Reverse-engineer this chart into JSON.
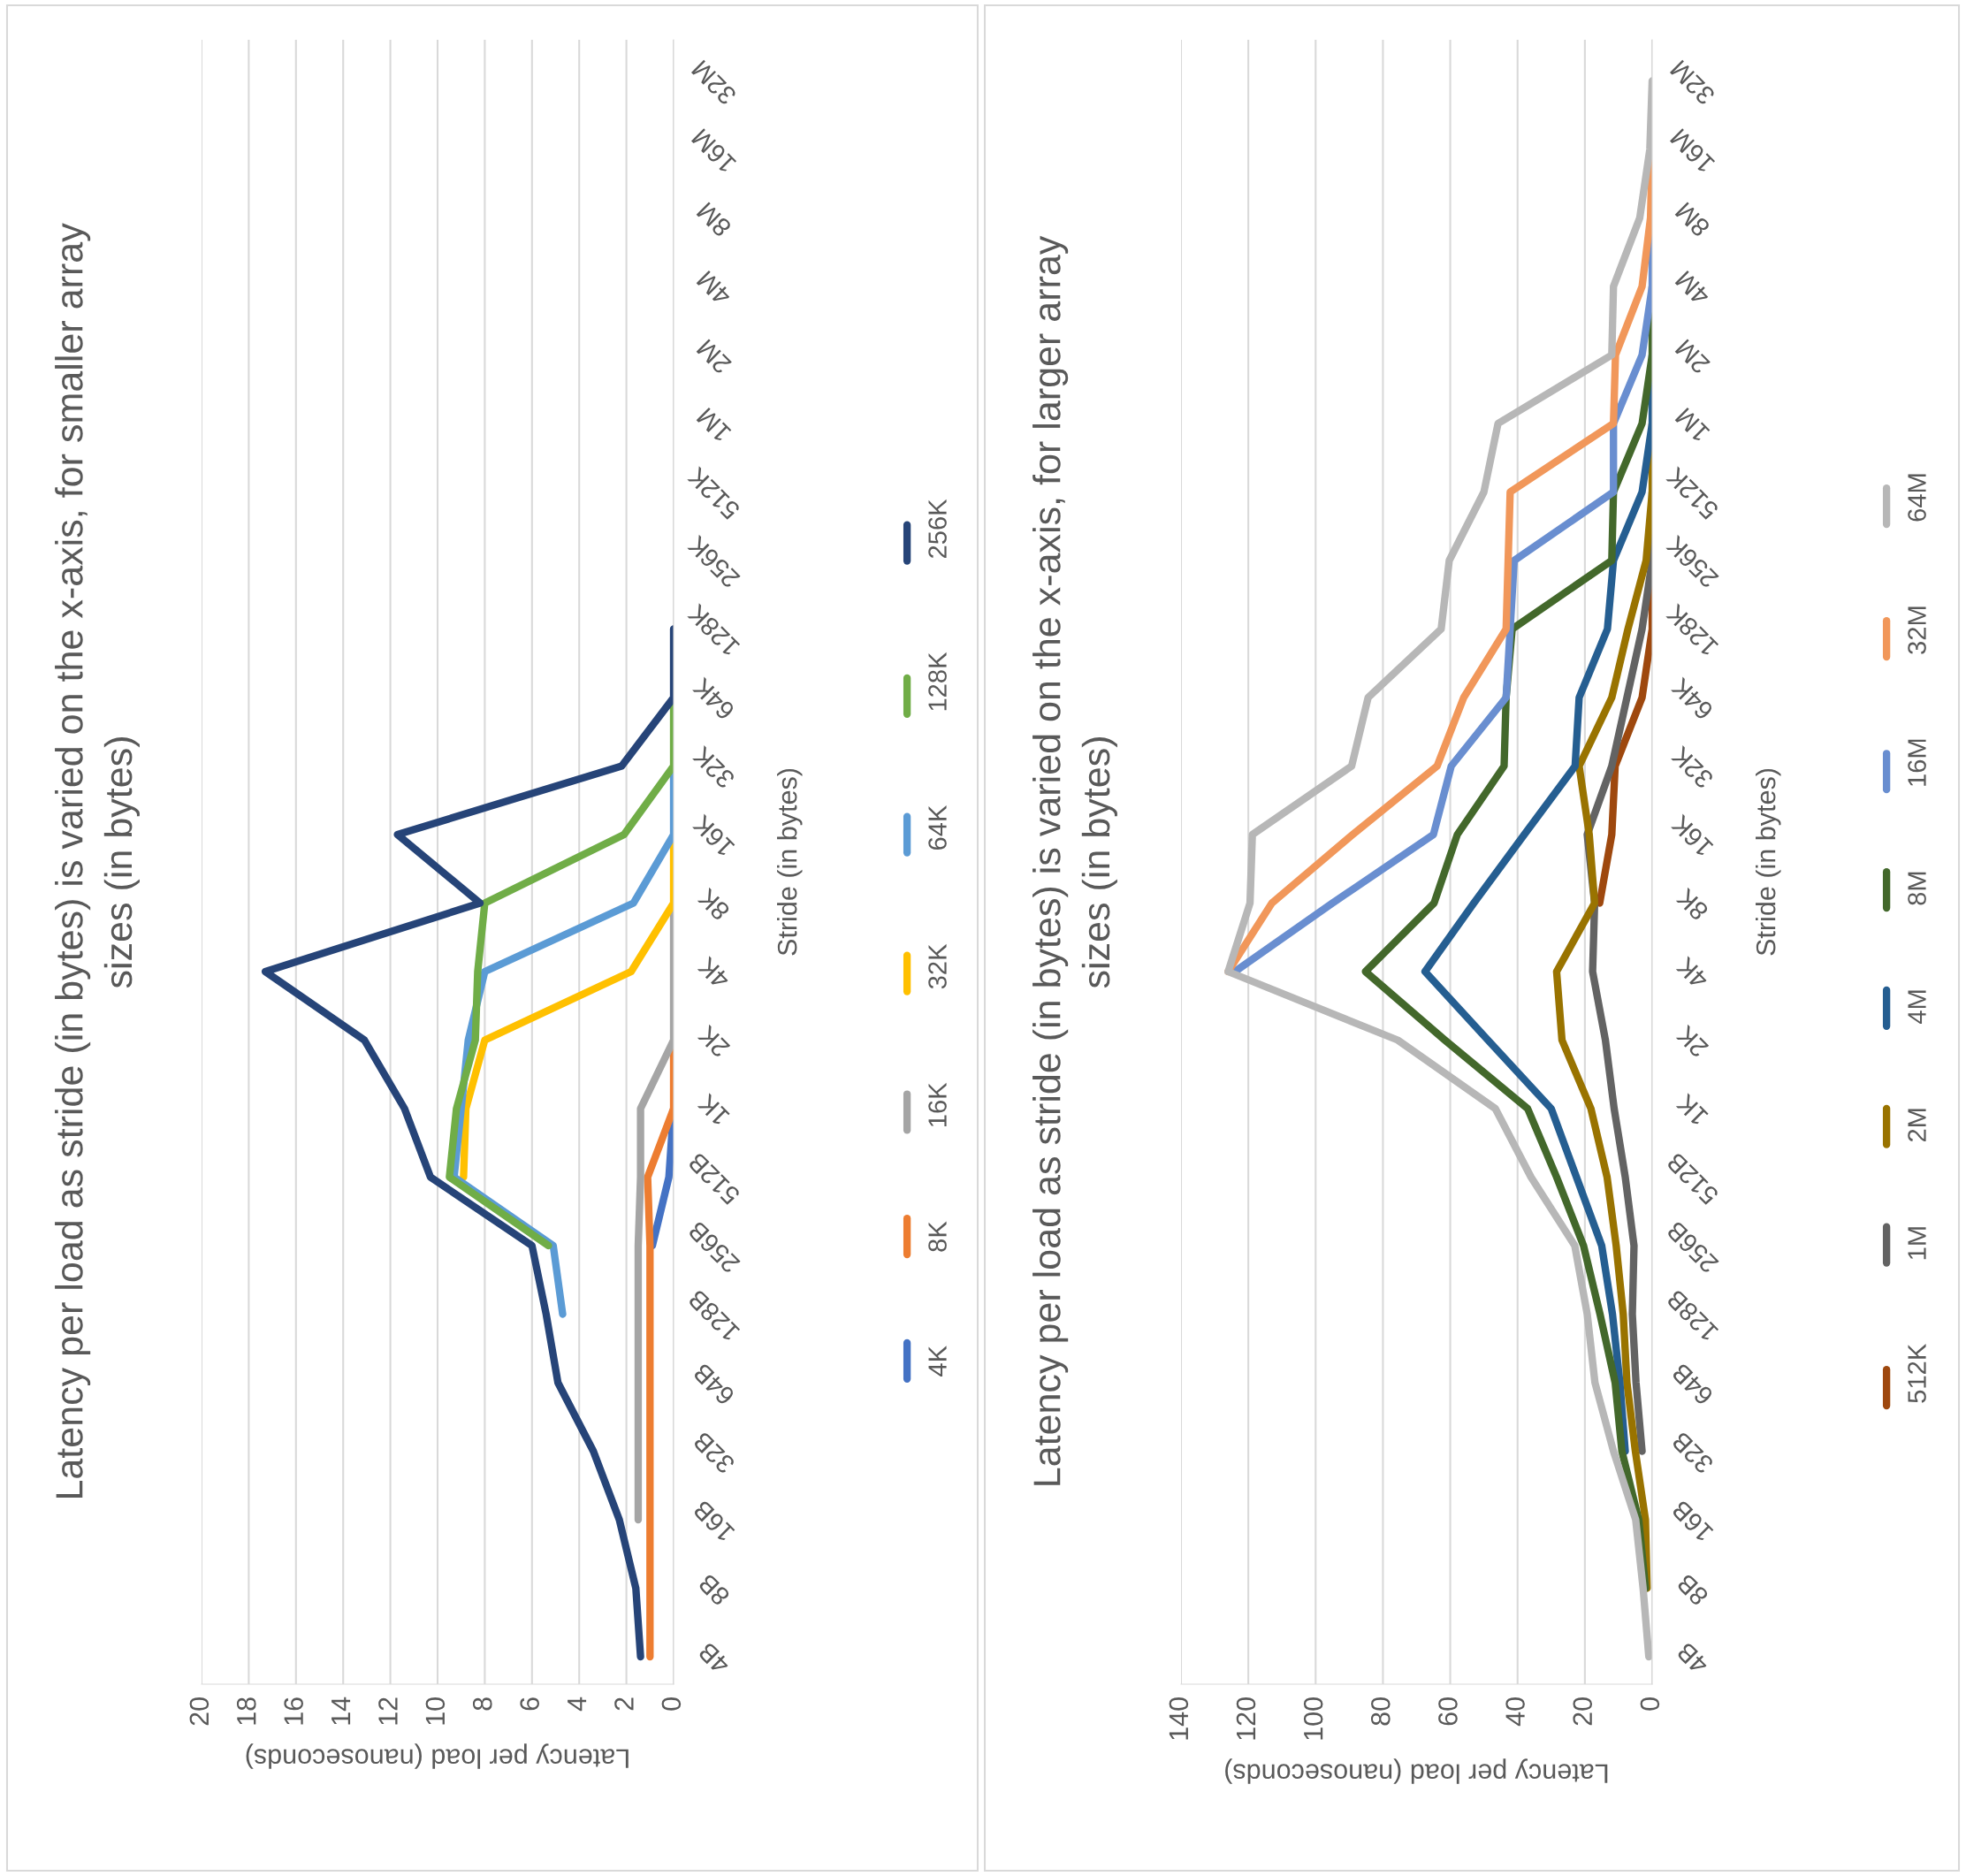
{
  "chart_data": [
    {
      "type": "line",
      "orientation": "horizontal",
      "title": "Latency per load as stride (in bytes) is varied on the x-axis, for smaller array\nsizes (in bytes)",
      "xlabel": "Latency per load (nanoseconds)",
      "ylabel": "Stride (in bytes)",
      "categories": [
        "32M",
        "16M",
        "8M",
        "4M",
        "2M",
        "1M",
        "512K",
        "256K",
        "128K",
        "64K",
        "32K",
        "16K",
        "8K",
        "4K",
        "2K",
        "1K",
        "512B",
        "256B",
        "128B",
        "64B",
        "32B",
        "16B",
        "8B",
        "4B"
      ],
      "xlim": [
        20,
        0
      ],
      "xticks": [
        0,
        2,
        4,
        6,
        8,
        10,
        12,
        14,
        16,
        18,
        20
      ],
      "grid": "x",
      "legend": "right",
      "line_style": "solid",
      "marker": "none",
      "series": [
        {
          "name": "4K",
          "color": "#4472c4",
          "values": [
            null,
            null,
            null,
            null,
            null,
            null,
            null,
            null,
            null,
            null,
            null,
            null,
            null,
            null,
            null,
            0,
            0.2,
            0.9,
            null,
            null,
            null,
            null,
            null,
            null
          ]
        },
        {
          "name": "8K",
          "color": "#ed7d31",
          "values": [
            null,
            null,
            null,
            null,
            null,
            null,
            null,
            null,
            null,
            null,
            null,
            null,
            null,
            null,
            0,
            0,
            1.1,
            1.0,
            1.0,
            1.0,
            1.0,
            1.0,
            1.0,
            1.0
          ]
        },
        {
          "name": "16K",
          "color": "#a5a5a5",
          "values": [
            null,
            null,
            null,
            null,
            null,
            null,
            null,
            null,
            null,
            null,
            null,
            null,
            0,
            0,
            0,
            1.4,
            1.4,
            1.5,
            1.5,
            1.5,
            1.5,
            1.5,
            null,
            null
          ]
        },
        {
          "name": "32K",
          "color": "#ffc000",
          "values": [
            null,
            null,
            null,
            null,
            null,
            null,
            null,
            null,
            null,
            null,
            null,
            0,
            0,
            1.8,
            8.0,
            8.8,
            8.9,
            null,
            null,
            null,
            null,
            null,
            null,
            null
          ]
        },
        {
          "name": "64K",
          "color": "#5b9bd5",
          "values": [
            null,
            null,
            null,
            null,
            null,
            null,
            null,
            null,
            null,
            null,
            0,
            0,
            1.7,
            8.0,
            8.7,
            9.0,
            9.3,
            5.1,
            4.7,
            null,
            null,
            null,
            null,
            null
          ]
        },
        {
          "name": "128K",
          "color": "#70ad47",
          "values": [
            null,
            null,
            null,
            null,
            null,
            null,
            null,
            null,
            null,
            0,
            0,
            2.1,
            8.0,
            8.3,
            8.4,
            9.2,
            9.5,
            5.3,
            null,
            null,
            null,
            null,
            null,
            null
          ]
        },
        {
          "name": "256K",
          "color": "#264478",
          "values": [
            null,
            null,
            null,
            null,
            null,
            null,
            null,
            null,
            0,
            0,
            2.2,
            11.7,
            8.2,
            17.3,
            13.1,
            11.4,
            10.3,
            6.0,
            5.4,
            4.9,
            3.4,
            2.3,
            1.6,
            1.4
          ]
        }
      ]
    },
    {
      "type": "line",
      "orientation": "horizontal",
      "title": "Latency per load as stride (in bytes) is varied on the x-axis, for larger array\nsizes (in bytes)",
      "xlabel": "Latency per load (nanoseconds)",
      "ylabel": "Stride (in bytes)",
      "categories": [
        "32M",
        "16M",
        "8M",
        "4M",
        "2M",
        "1M",
        "512K",
        "256K",
        "128K",
        "64K",
        "32K",
        "16K",
        "8K",
        "4K",
        "2K",
        "1K",
        "512B",
        "256B",
        "128B",
        "64B",
        "32B",
        "16B",
        "8B",
        "4B"
      ],
      "xlim": [
        140,
        0
      ],
      "xticks": [
        0,
        20,
        40,
        60,
        80,
        100,
        120,
        140
      ],
      "grid": "x",
      "legend": "right",
      "line_style": "solid",
      "marker": "none",
      "series": [
        {
          "name": "512K",
          "color": "#9e480e",
          "values": [
            null,
            null,
            null,
            null,
            null,
            null,
            null,
            0,
            0,
            3,
            11,
            12,
            15.6,
            null,
            null,
            null,
            null,
            null,
            null,
            null,
            null,
            null,
            null,
            null
          ]
        },
        {
          "name": "1M",
          "color": "#636363",
          "values": [
            null,
            null,
            null,
            null,
            null,
            null,
            0,
            0,
            3,
            7.5,
            12,
            19.3,
            17.1,
            17.7,
            13.9,
            11.3,
            8,
            5.4,
            5.9,
            4.8,
            3,
            null,
            null,
            null
          ]
        },
        {
          "name": "2M",
          "color": "#997300",
          "values": [
            null,
            null,
            null,
            null,
            null,
            0,
            0,
            1.8,
            7.2,
            12,
            21.7,
            18.7,
            17.1,
            28.4,
            26.8,
            18.2,
            13.4,
            10.7,
            8.6,
            7.5,
            5,
            2,
            1.5,
            null
          ]
        },
        {
          "name": "4M",
          "color": "#255e91",
          "values": [
            null,
            null,
            null,
            null,
            0,
            0,
            3,
            11.5,
            13.3,
            21.7,
            22.9,
            38,
            53,
            67.5,
            48.8,
            30,
            22.5,
            15,
            11.8,
            9.6,
            8,
            null,
            null,
            null
          ]
        },
        {
          "name": "8M",
          "color": "#43682b",
          "values": [
            null,
            null,
            null,
            0,
            0,
            3,
            11.5,
            12,
            41.6,
            43.4,
            44,
            57.9,
            64.8,
            85.2,
            61.6,
            37,
            28.4,
            20.4,
            15.5,
            11,
            9,
            4,
            2,
            null
          ]
        },
        {
          "name": "16M",
          "color": "#698ed0",
          "values": [
            null,
            null,
            0,
            0,
            3,
            11.5,
            11.5,
            41,
            42.2,
            43.4,
            59.7,
            65,
            95,
            124,
            null,
            null,
            null,
            null,
            null,
            null,
            null,
            null,
            null,
            null
          ]
        },
        {
          "name": "32M",
          "color": "#f1975a",
          "values": [
            null,
            0,
            0.5,
            3,
            10.9,
            11.5,
            42.2,
            42.8,
            43.4,
            56,
            63.9,
            89,
            113,
            126,
            null,
            null,
            null,
            null,
            null,
            null,
            null,
            null,
            null,
            null
          ]
        },
        {
          "name": "64M",
          "color": "#b7b7b7",
          "values": [
            0,
            0.7,
            3.7,
            11.5,
            12,
            45.8,
            50,
            60.3,
            62.7,
            84.4,
            89.3,
            118.8,
            119.5,
            126,
            75.6,
            46.6,
            36,
            23,
            19.3,
            17,
            11.5,
            4.9,
            2.7,
            1
          ]
        }
      ]
    }
  ]
}
